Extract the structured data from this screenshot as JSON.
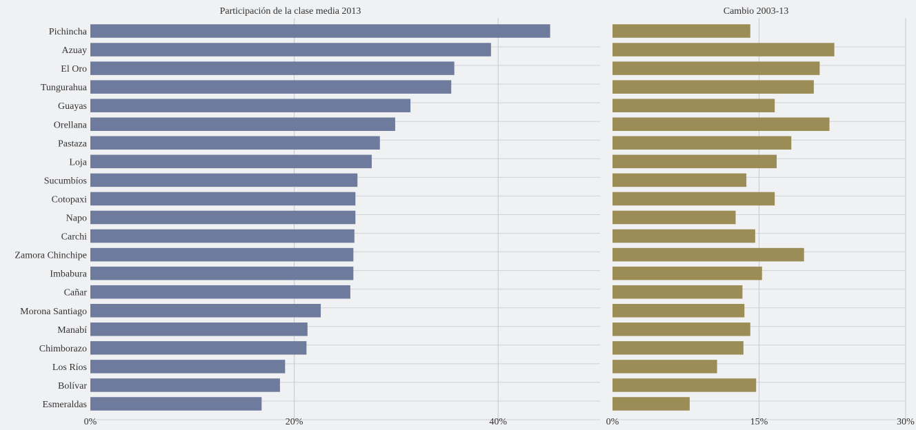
{
  "chart_data": [
    {
      "type": "bar",
      "orientation": "horizontal",
      "title": "Participación de la clase media 2013",
      "categories": [
        "Pichincha",
        "Azuay",
        "El Oro",
        "Tungurahua",
        "Guayas",
        "Orellana",
        "Pastaza",
        "Loja",
        "Sucumbíos",
        "Cotopaxi",
        "Napo",
        "Carchi",
        "Zamora Chinchipe",
        "Imbabura",
        "Cañar",
        "Morona Santiago",
        "Manabí",
        "Chimborazo",
        "Los Ríos",
        "Bolívar",
        "Esmeraldas"
      ],
      "values": [
        45.1,
        39.3,
        35.7,
        35.4,
        31.4,
        29.9,
        28.4,
        27.6,
        26.2,
        26.0,
        26.0,
        25.9,
        25.8,
        25.8,
        25.5,
        22.6,
        21.3,
        21.2,
        19.1,
        18.6,
        16.8
      ],
      "xlim": [
        0,
        50
      ],
      "ticks": [
        0,
        20,
        40
      ],
      "tick_labels": [
        "0%",
        "20%",
        "40%"
      ],
      "color": "#6e7b9c",
      "grid": true
    },
    {
      "type": "bar",
      "orientation": "horizontal",
      "title": "Cambio 2003-13",
      "categories": [
        "Pichincha",
        "Azuay",
        "El Oro",
        "Tungurahua",
        "Guayas",
        "Orellana",
        "Pastaza",
        "Loja",
        "Sucumbíos",
        "Cotopaxi",
        "Napo",
        "Carchi",
        "Zamora Chinchipe",
        "Imbabura",
        "Cañar",
        "Morona Santiago",
        "Manabí",
        "Chimborazo",
        "Los Ríos",
        "Bolívar",
        "Esmeraldas"
      ],
      "values": [
        14.1,
        22.7,
        21.2,
        20.6,
        16.6,
        22.2,
        18.3,
        16.8,
        13.7,
        16.6,
        12.6,
        14.6,
        19.6,
        15.3,
        13.3,
        13.5,
        14.1,
        13.4,
        10.7,
        14.7,
        7.9
      ],
      "xlim": [
        0,
        30
      ],
      "ticks": [
        0,
        15,
        30
      ],
      "tick_labels": [
        "0%",
        "15%",
        "30%"
      ],
      "color": "#9c8c55",
      "grid": true
    }
  ]
}
